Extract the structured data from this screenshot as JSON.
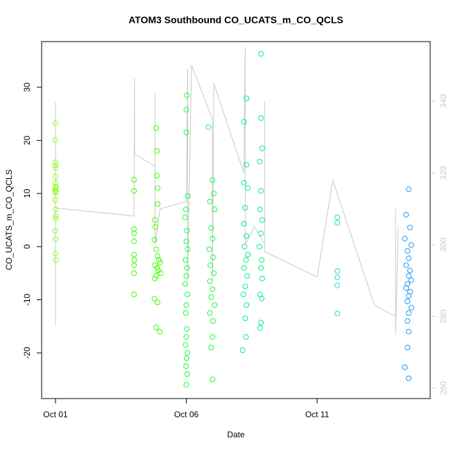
{
  "chart_data": {
    "type": "scatter",
    "title": "ATOM3 Southbound CO_UCATS_m_CO_QCLS",
    "x_label": "Date",
    "y_label": "CO_UCATS_m_CO_QCLS",
    "xlim": [
      0.47,
      15.32
    ],
    "ylim": [
      -28.6,
      38.6
    ],
    "y2lim": [
      257.1,
      356.6
    ],
    "xticks": [
      {
        "value": 1,
        "label": "Oct 01"
      },
      {
        "value": 6,
        "label": "Oct 06"
      },
      {
        "value": 11,
        "label": "Oct 11"
      }
    ],
    "yticks": [
      -20,
      -10,
      0,
      10,
      20,
      30
    ],
    "y2ticks": [
      260,
      280,
      300,
      320,
      340
    ],
    "series": [
      {
        "type": "line",
        "axis": "y2",
        "color": "#c8c8c8",
        "x": [
          1.0,
          1.0,
          1.0,
          4.0,
          4.02,
          4.02,
          4.8,
          4.8,
          4.8,
          5.0,
          6.0,
          6.05,
          6.05,
          6.2,
          7.0,
          7.0,
          7.05,
          8.2,
          8.25,
          8.25,
          8.6,
          9.0,
          9.0,
          9.0,
          11.0,
          11.6,
          13.2,
          14.0,
          14.0,
          14.0,
          14.1
        ],
        "values": [
          339.8,
          277.4,
          310.2,
          308.0,
          346.4,
          325.3,
          321.8,
          342,
          300,
          310,
          312,
          349,
          290,
          350,
          335,
          290,
          345,
          320,
          355,
          300,
          305,
          300,
          340,
          298,
          291,
          318,
          283,
          280,
          310,
          275,
          305
        ]
      },
      {
        "color": "#8cff1a",
        "x": [
          1.0,
          0.99,
          1.0,
          0.99,
          1.01,
          1.0,
          0.99,
          1.01,
          1.0,
          0.99,
          1.02,
          1.0,
          0.99,
          1.0,
          1.01,
          1.0,
          0.99,
          1.0,
          1.0,
          1.02
        ],
        "values": [
          23.2,
          20.1,
          15.9,
          15.3,
          14.8,
          13.2,
          12.0,
          11.3,
          10.9,
          10.6,
          10.4,
          10.2,
          8.8,
          7.0,
          5.7,
          5.3,
          3.0,
          1.4,
          -1.3,
          -2.5
        ]
      },
      {
        "color": "#3dff00",
        "x": [
          4.0,
          4.0,
          4.0,
          4.01,
          4.0,
          4.0,
          4.01,
          4.0,
          4.0,
          4.0,
          4.85,
          4.88,
          4.87,
          4.9,
          4.9,
          4.8,
          4.82,
          4.78,
          4.85,
          4.9,
          4.95,
          5.0,
          4.8,
          4.88,
          4.92,
          5.02,
          4.85,
          4.8,
          4.78,
          4.9,
          4.85,
          4.98
        ],
        "values": [
          12.6,
          10.5,
          3.3,
          2.5,
          1.0,
          -1.5,
          -2.5,
          -3.5,
          -5.0,
          -9.0,
          22.3,
          18.0,
          13.4,
          11.0,
          8.0,
          5.0,
          3.7,
          1.3,
          -0.5,
          -1.8,
          -2.5,
          -3.0,
          -3.5,
          -4.0,
          -4.5,
          -5.0,
          -5.5,
          -6.0,
          -9.8,
          -10.5,
          -15.2,
          -16.0
        ]
      },
      {
        "color": "#14ff3c",
        "x": [
          6.02,
          6.0,
          6.0,
          6.05,
          5.98,
          5.95,
          6.02,
          6.0,
          6.05,
          5.97,
          6.03,
          6.0,
          5.96,
          6.04,
          6.0,
          5.98,
          6.02,
          6.0,
          5.97,
          6.04,
          6.01,
          5.99,
          6.03,
          6.0,
          6.85,
          7.0,
          7.05,
          6.9,
          7.08,
          6.95,
          7.0,
          6.88,
          7.02,
          6.92,
          7.05,
          6.9,
          7.0,
          6.95,
          7.08,
          6.9,
          7.02,
          7.0,
          6.95,
          7.0
        ],
        "values": [
          28.5,
          25.8,
          21.5,
          9.5,
          7.0,
          5.5,
          3.0,
          1.0,
          -0.5,
          -2.5,
          -4.0,
          -5.5,
          -7.0,
          -9.0,
          -11.0,
          -12.5,
          -15.5,
          -17.0,
          -18.5,
          -20.0,
          -21.0,
          -22.5,
          -24.0,
          -26.0,
          22.5,
          12.5,
          10.0,
          8.5,
          7.0,
          3.5,
          1.5,
          -0.5,
          -2.0,
          -3.5,
          -5.0,
          -6.5,
          -8.0,
          -9.5,
          -11.0,
          -12.5,
          -14.0,
          -17.0,
          -19.0,
          -25.0
        ]
      },
      {
        "color": "#00f080",
        "x": [
          8.3,
          8.2,
          8.3,
          8.2,
          8.35,
          8.25,
          8.2,
          8.3,
          8.22,
          8.35,
          8.28,
          8.2,
          8.32,
          8.25,
          8.18,
          8.3,
          8.25,
          8.28,
          8.15,
          8.85,
          8.85,
          8.9,
          8.8,
          8.85,
          8.82,
          8.9,
          8.85,
          8.8,
          8.88,
          8.85,
          8.9,
          8.82,
          8.88,
          8.85,
          8.82
        ],
        "values": [
          27.9,
          23.5,
          15.4,
          12.0,
          11.0,
          7.3,
          4.3,
          2.0,
          0.0,
          -1.5,
          -2.5,
          -4.0,
          -5.5,
          -7.5,
          -9.0,
          -11.0,
          -13.5,
          -17.0,
          -19.5,
          36.3,
          24.2,
          18.5,
          16.0,
          10.5,
          7.0,
          5.0,
          2.5,
          0.0,
          -2.5,
          -4.0,
          -6.0,
          -9.0,
          -9.8,
          -14.3,
          -15.3
        ]
      },
      {
        "color": "#26e0cc",
        "x": [
          11.77,
          11.77,
          11.77,
          11.77,
          11.77,
          11.77
        ],
        "values": [
          5.5,
          4.5,
          -4.6,
          -5.8,
          -7.3,
          -12.6
        ]
      },
      {
        "color": "#1a9bff",
        "x": [
          14.5,
          14.4,
          14.55,
          14.35,
          14.6,
          14.45,
          14.5,
          14.4,
          14.55,
          14.5,
          14.6,
          14.45,
          14.4,
          14.55,
          14.5,
          14.45,
          14.6,
          14.5,
          14.45,
          14.5,
          14.45,
          14.35,
          14.5
        ],
        "values": [
          10.8,
          6.0,
          3.6,
          1.5,
          0.3,
          -0.8,
          -2.2,
          -3.5,
          -4.5,
          -5.5,
          -6.3,
          -7.0,
          -7.8,
          -8.5,
          -9.3,
          -10.3,
          -11.5,
          -12.5,
          -14.0,
          -16.0,
          -19.0,
          -22.7,
          -24.8
        ]
      }
    ]
  }
}
